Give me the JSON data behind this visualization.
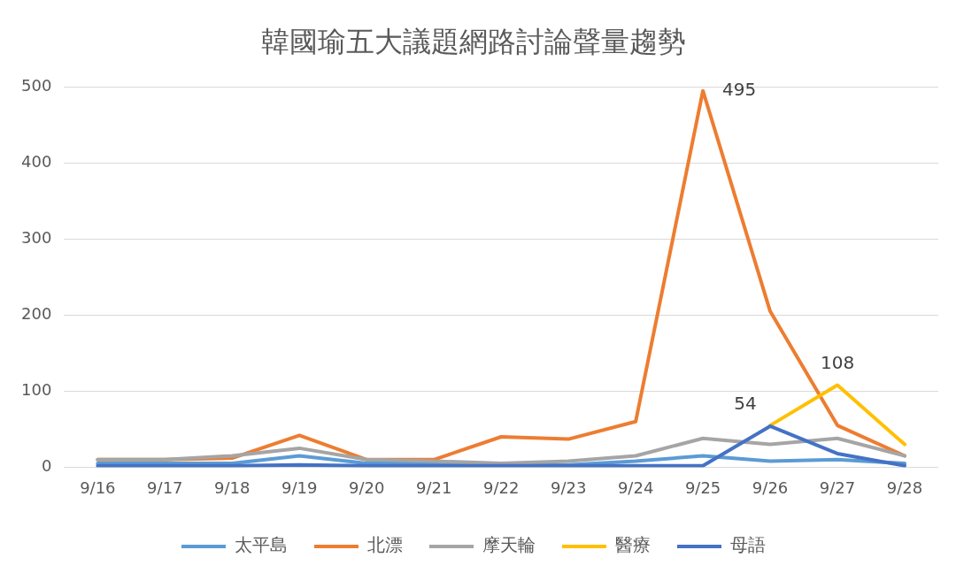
{
  "chart_data": {
    "type": "line",
    "title": "韓國瑜五大議題網路討論聲量趨勢",
    "categories": [
      "9/16",
      "9/17",
      "9/18",
      "9/19",
      "9/20",
      "9/21",
      "9/22",
      "9/23",
      "9/24",
      "9/25",
      "9/26",
      "9/27",
      "9/28"
    ],
    "series": [
      {
        "name": "太平島",
        "color": "#5b9bd5",
        "values": [
          5,
          5,
          5,
          15,
          5,
          5,
          3,
          3,
          8,
          15,
          8,
          10,
          5
        ]
      },
      {
        "name": "北漂",
        "color": "#ed7d31",
        "values": [
          10,
          10,
          12,
          42,
          10,
          10,
          40,
          37,
          60,
          495,
          205,
          55,
          15
        ],
        "value_labels": [
          null,
          null,
          null,
          null,
          null,
          null,
          null,
          null,
          null,
          "495",
          null,
          null,
          null
        ]
      },
      {
        "name": "摩天輪",
        "color": "#a5a5a5",
        "values": [
          10,
          10,
          15,
          25,
          10,
          8,
          5,
          8,
          15,
          38,
          30,
          38,
          15
        ]
      },
      {
        "name": "醫療",
        "color": "#ffc000",
        "values": [
          null,
          null,
          null,
          null,
          null,
          null,
          null,
          null,
          null,
          null,
          55,
          108,
          30
        ],
        "value_labels": [
          null,
          null,
          null,
          null,
          null,
          null,
          null,
          null,
          null,
          null,
          null,
          "108",
          null
        ]
      },
      {
        "name": "母語",
        "color": "#4472c4",
        "values": [
          2,
          2,
          2,
          3,
          2,
          2,
          2,
          2,
          2,
          2,
          54,
          18,
          2
        ],
        "value_labels": [
          null,
          null,
          null,
          null,
          null,
          null,
          null,
          null,
          null,
          null,
          "54",
          null,
          null
        ]
      }
    ],
    "ylim": [
      0,
      500
    ],
    "yticks": [
      0,
      100,
      200,
      300,
      400,
      500
    ],
    "grid": "y",
    "legend": "bottom",
    "marker": "none",
    "line_style": "solid"
  }
}
